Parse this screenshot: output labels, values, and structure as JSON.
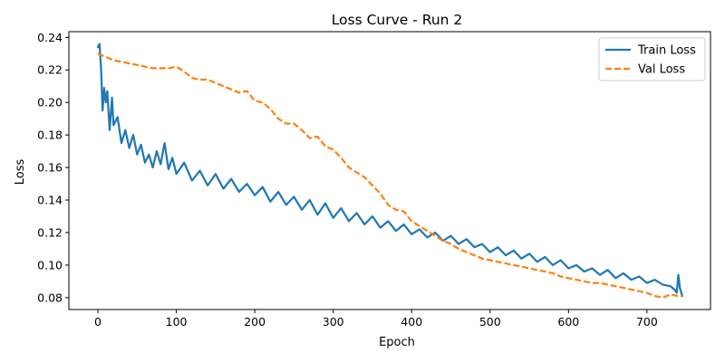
{
  "chart_data": {
    "type": "line",
    "title": "Loss Curve - Run 2",
    "xlabel": "Epoch",
    "ylabel": "Loss",
    "xlim": [
      -37,
      781
    ],
    "ylim": [
      0.0727,
      0.2435
    ],
    "x_ticks": [
      0,
      100,
      200,
      300,
      400,
      500,
      600,
      700
    ],
    "y_ticks": [
      0.08,
      0.1,
      0.12,
      0.14,
      0.16,
      0.18,
      0.2,
      0.22,
      0.24
    ],
    "y_tick_labels": [
      "0.08",
      "0.10",
      "0.12",
      "0.14",
      "0.16",
      "0.18",
      "0.20",
      "0.22",
      "0.24"
    ],
    "grid": false,
    "legend_position": "top-right",
    "colors": {
      "train": "#1f77b4",
      "val": "#ff7f0e"
    },
    "series": [
      {
        "name": "Train Loss",
        "style": "solid",
        "x": [
          0,
          2,
          4,
          6,
          8,
          10,
          12,
          15,
          18,
          20,
          25,
          30,
          35,
          40,
          45,
          50,
          55,
          60,
          65,
          70,
          75,
          80,
          85,
          90,
          95,
          100,
          110,
          120,
          130,
          140,
          150,
          160,
          170,
          180,
          190,
          200,
          210,
          220,
          230,
          240,
          250,
          260,
          270,
          280,
          290,
          300,
          310,
          320,
          330,
          340,
          350,
          360,
          370,
          380,
          390,
          400,
          410,
          420,
          430,
          440,
          450,
          460,
          470,
          480,
          490,
          500,
          510,
          520,
          530,
          540,
          550,
          560,
          570,
          580,
          590,
          600,
          610,
          620,
          630,
          640,
          650,
          660,
          670,
          680,
          690,
          700,
          710,
          720,
          730,
          735,
          738,
          740,
          742,
          745
        ],
        "y": [
          0.234,
          0.236,
          0.221,
          0.195,
          0.209,
          0.2,
          0.207,
          0.183,
          0.203,
          0.186,
          0.191,
          0.175,
          0.183,
          0.172,
          0.18,
          0.168,
          0.174,
          0.163,
          0.168,
          0.16,
          0.17,
          0.162,
          0.175,
          0.159,
          0.166,
          0.156,
          0.163,
          0.152,
          0.158,
          0.149,
          0.156,
          0.147,
          0.153,
          0.145,
          0.15,
          0.143,
          0.148,
          0.139,
          0.145,
          0.137,
          0.142,
          0.134,
          0.14,
          0.131,
          0.138,
          0.129,
          0.135,
          0.127,
          0.132,
          0.125,
          0.13,
          0.123,
          0.127,
          0.121,
          0.125,
          0.119,
          0.122,
          0.117,
          0.12,
          0.115,
          0.118,
          0.113,
          0.116,
          0.111,
          0.113,
          0.108,
          0.111,
          0.106,
          0.109,
          0.104,
          0.107,
          0.102,
          0.105,
          0.1,
          0.103,
          0.098,
          0.1,
          0.096,
          0.098,
          0.094,
          0.097,
          0.092,
          0.095,
          0.091,
          0.093,
          0.089,
          0.091,
          0.088,
          0.087,
          0.085,
          0.083,
          0.094,
          0.086,
          0.081
        ]
      },
      {
        "name": "Val Loss",
        "style": "dashed",
        "x": [
          0,
          10,
          20,
          30,
          40,
          50,
          60,
          70,
          80,
          90,
          100,
          110,
          120,
          130,
          140,
          150,
          160,
          170,
          180,
          190,
          200,
          210,
          220,
          230,
          240,
          250,
          260,
          270,
          280,
          290,
          300,
          310,
          320,
          330,
          340,
          350,
          360,
          370,
          380,
          390,
          400,
          410,
          420,
          430,
          440,
          450,
          460,
          470,
          480,
          490,
          500,
          510,
          520,
          530,
          540,
          550,
          560,
          570,
          580,
          590,
          600,
          610,
          620,
          630,
          640,
          650,
          660,
          670,
          680,
          690,
          700,
          710,
          720,
          730,
          740,
          745
        ],
        "y": [
          0.23,
          0.228,
          0.226,
          0.225,
          0.224,
          0.223,
          0.222,
          0.221,
          0.221,
          0.221,
          0.222,
          0.219,
          0.215,
          0.214,
          0.214,
          0.212,
          0.21,
          0.208,
          0.206,
          0.207,
          0.201,
          0.2,
          0.196,
          0.19,
          0.187,
          0.187,
          0.183,
          0.178,
          0.179,
          0.173,
          0.171,
          0.166,
          0.16,
          0.157,
          0.154,
          0.149,
          0.144,
          0.137,
          0.134,
          0.133,
          0.127,
          0.124,
          0.121,
          0.118,
          0.115,
          0.113,
          0.11,
          0.108,
          0.106,
          0.104,
          0.103,
          0.102,
          0.101,
          0.1,
          0.099,
          0.098,
          0.097,
          0.096,
          0.095,
          0.093,
          0.092,
          0.091,
          0.09,
          0.089,
          0.089,
          0.088,
          0.087,
          0.086,
          0.085,
          0.084,
          0.083,
          0.081,
          0.08,
          0.082,
          0.081,
          0.081
        ]
      }
    ]
  }
}
